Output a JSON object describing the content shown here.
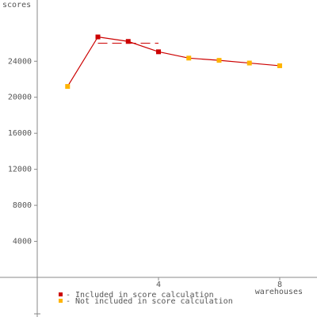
{
  "chart_data": {
    "type": "line",
    "y_label": "scores",
    "x_label": "warehouses",
    "x": [
      1,
      2,
      3,
      4,
      5,
      6,
      7,
      8
    ],
    "values": [
      21200,
      26700,
      26200,
      25050,
      24350,
      24100,
      23800,
      23500
    ],
    "included": [
      false,
      true,
      true,
      true,
      false,
      false,
      false,
      false
    ],
    "score": 26000,
    "line_color": "#cc0000",
    "included_color": "#cc0000",
    "excluded_color": "#ffb400",
    "legend": [
      "- Included in score calculation",
      "- Not included in score calculation"
    ],
    "xlim": [
      -1.23,
      9.23
    ],
    "xticks": [
      4,
      8
    ],
    "ylim": [
      -4400,
      30800
    ],
    "yticks": [
      4000,
      8000,
      12000,
      16000,
      20000,
      24000
    ]
  }
}
